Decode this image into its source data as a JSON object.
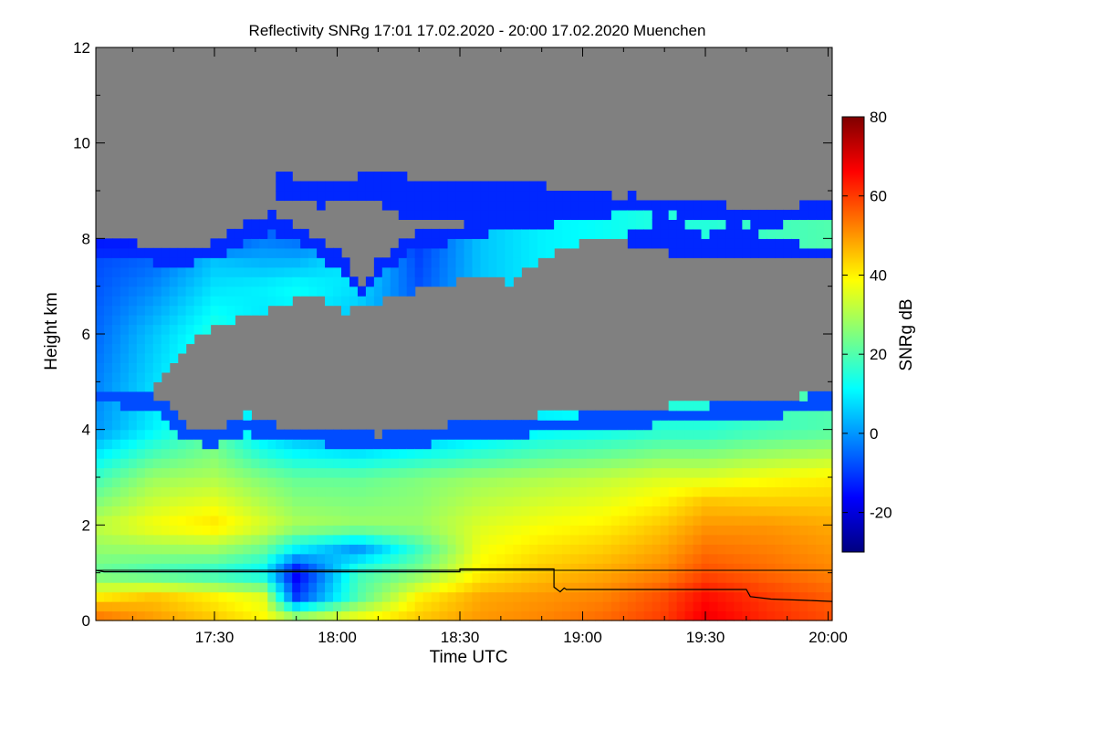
{
  "chart_data": {
    "type": "heatmap",
    "title": "Reflectivity SNRg   17:01 17.02.2020 - 20:00 17.02.2020 Muenchen",
    "xlabel": "Time UTC",
    "ylabel": "Height km",
    "x_tick_labels": [
      "17:30",
      "18:00",
      "18:30",
      "19:00",
      "19:30",
      "20:00"
    ],
    "x_tick_minutes": [
      1050,
      1080,
      1110,
      1140,
      1170,
      1200
    ],
    "xlim_minutes": [
      1021,
      1201
    ],
    "y_tick_labels": [
      "0",
      "2",
      "4",
      "6",
      "8",
      "10",
      "12"
    ],
    "y_ticks": [
      0,
      2,
      4,
      6,
      8,
      10,
      12
    ],
    "ylim": [
      0,
      12
    ],
    "colorbar": {
      "label": "SNRg dB",
      "tick_labels": [
        "-20",
        "0",
        "20",
        "40",
        "60",
        "80"
      ],
      "ticks": [
        -20,
        0,
        20,
        40,
        60,
        80
      ],
      "range": [
        -30,
        80
      ],
      "colormap": [
        "#00007f",
        "#0000ff",
        "#007fff",
        "#00ffff",
        "#7fff7f",
        "#ffff00",
        "#ff7f00",
        "#ff0000",
        "#7f0000"
      ]
    },
    "no_signal_color": "#808080",
    "cloud_top_km": [
      [
        1021,
        8.0
      ],
      [
        1030,
        7.9
      ],
      [
        1040,
        7.8
      ],
      [
        1050,
        7.9
      ],
      [
        1058,
        8.3
      ],
      [
        1064,
        8.5
      ],
      [
        1072,
        8.2
      ],
      [
        1080,
        7.7
      ],
      [
        1086,
        7.1
      ],
      [
        1090,
        7.5
      ],
      [
        1096,
        8.0
      ],
      [
        1104,
        8.2
      ],
      [
        1112,
        8.3
      ],
      [
        1120,
        8.5
      ],
      [
        1128,
        8.6
      ],
      [
        1136,
        8.7
      ],
      [
        1144,
        8.8
      ],
      [
        1152,
        8.9
      ],
      [
        1160,
        8.8
      ],
      [
        1168,
        8.8
      ],
      [
        1176,
        8.7
      ],
      [
        1184,
        8.6
      ],
      [
        1192,
        8.7
      ],
      [
        1201,
        8.8
      ]
    ],
    "clear_gap_km": [
      [
        1021,
        4.9,
        4.9
      ],
      [
        1034,
        4.8,
        4.8
      ],
      [
        1044,
        5.8,
        4.1
      ],
      [
        1050,
        6.2,
        4.0
      ],
      [
        1058,
        6.4,
        4.3
      ],
      [
        1066,
        6.6,
        4.1
      ],
      [
        1074,
        6.9,
        4.1
      ],
      [
        1082,
        6.5,
        4.0
      ],
      [
        1090,
        6.7,
        3.9
      ],
      [
        1098,
        6.9,
        4.0
      ],
      [
        1106,
        7.0,
        4.1
      ],
      [
        1114,
        7.3,
        4.2
      ],
      [
        1122,
        7.1,
        4.2
      ],
      [
        1130,
        7.6,
        4.3
      ],
      [
        1138,
        7.9,
        4.3
      ],
      [
        1146,
        8.0,
        4.4
      ],
      [
        1154,
        8.2,
        4.4
      ],
      [
        1162,
        8.5,
        4.5
      ],
      [
        1170,
        8.1,
        4.5
      ],
      [
        1178,
        8.4,
        4.6
      ],
      [
        1186,
        8.0,
        4.6
      ],
      [
        1194,
        7.9,
        4.7
      ],
      [
        1201,
        7.9,
        4.8
      ]
    ],
    "upper_layer_km": [
      [
        1066,
        8.9,
        9.4
      ],
      [
        1076,
        8.7,
        9.1
      ],
      [
        1086,
        8.9,
        9.3
      ],
      [
        1096,
        8.5,
        9.3
      ],
      [
        1106,
        8.4,
        9.2
      ],
      [
        1116,
        8.5,
        9.1
      ],
      [
        1126,
        8.5,
        9.2
      ],
      [
        1136,
        8.2,
        9.0
      ],
      [
        1146,
        8.0,
        8.9
      ],
      [
        1156,
        7.8,
        8.6
      ],
      [
        1166,
        7.6,
        8.4
      ],
      [
        1176,
        7.7,
        8.3
      ],
      [
        1186,
        7.6,
        8.3
      ],
      [
        1196,
        7.6,
        8.2
      ],
      [
        1201,
        7.6,
        8.2
      ]
    ],
    "snr_profiles": [
      {
        "x": 1021,
        "z": [
          [
            0.0,
            55
          ],
          [
            0.3,
            48
          ],
          [
            1.0,
            22
          ],
          [
            2.0,
            32
          ],
          [
            3.0,
            18
          ],
          [
            4.0,
            0
          ],
          [
            6.0,
            -5
          ],
          [
            7.5,
            -8
          ],
          [
            8.0,
            -15
          ]
        ]
      },
      {
        "x": 1035,
        "z": [
          [
            0.0,
            50
          ],
          [
            0.5,
            45
          ],
          [
            1.0,
            18
          ],
          [
            2.0,
            38
          ],
          [
            3.0,
            28
          ],
          [
            4.0,
            10
          ],
          [
            6.0,
            5
          ],
          [
            7.5,
            -5
          ],
          [
            8.0,
            -15
          ]
        ]
      },
      {
        "x": 1050,
        "z": [
          [
            0.0,
            45
          ],
          [
            0.5,
            40
          ],
          [
            1.0,
            15
          ],
          [
            2.0,
            42
          ],
          [
            3.0,
            30
          ],
          [
            4.0,
            20
          ],
          [
            6.0,
            15
          ],
          [
            7.5,
            5
          ],
          [
            8.0,
            -10
          ]
        ]
      },
      {
        "x": 1062,
        "z": [
          [
            0.0,
            40
          ],
          [
            0.5,
            35
          ],
          [
            1.0,
            10
          ],
          [
            2.0,
            35
          ],
          [
            3.0,
            25
          ],
          [
            4.0,
            5
          ],
          [
            7.0,
            10
          ],
          [
            8.5,
            -10
          ]
        ]
      },
      {
        "x": 1070,
        "z": [
          [
            0.0,
            35
          ],
          [
            0.5,
            -10
          ],
          [
            1.0,
            -18
          ],
          [
            1.5,
            10
          ],
          [
            2.0,
            30
          ],
          [
            3.0,
            22
          ],
          [
            4.0,
            0
          ],
          [
            7.0,
            12
          ],
          [
            8.3,
            -10
          ]
        ]
      },
      {
        "x": 1085,
        "z": [
          [
            0.0,
            40
          ],
          [
            0.5,
            20
          ],
          [
            1.0,
            18
          ],
          [
            1.5,
            0
          ],
          [
            2.0,
            28
          ],
          [
            3.0,
            22
          ],
          [
            4.0,
            -5
          ],
          [
            7.5,
            10
          ],
          [
            8.3,
            -12
          ]
        ]
      },
      {
        "x": 1100,
        "z": [
          [
            0.0,
            45
          ],
          [
            0.5,
            40
          ],
          [
            1.0,
            25
          ],
          [
            1.5,
            18
          ],
          [
            2.0,
            28
          ],
          [
            3.0,
            25
          ],
          [
            4.0,
            0
          ],
          [
            8.0,
            -10
          ]
        ]
      },
      {
        "x": 1115,
        "z": [
          [
            0.0,
            50
          ],
          [
            0.5,
            48
          ],
          [
            1.0,
            40
          ],
          [
            2.0,
            35
          ],
          [
            3.0,
            28
          ],
          [
            4.0,
            5
          ]
        ]
      },
      {
        "x": 1130,
        "z": [
          [
            0.0,
            52
          ],
          [
            0.5,
            50
          ],
          [
            1.0,
            45
          ],
          [
            2.0,
            38
          ],
          [
            3.0,
            30
          ],
          [
            4.0,
            10
          ]
        ]
      },
      {
        "x": 1145,
        "z": [
          [
            0.0,
            55
          ],
          [
            0.5,
            52
          ],
          [
            1.0,
            48
          ],
          [
            2.0,
            40
          ],
          [
            3.0,
            32
          ],
          [
            4.0,
            12
          ]
        ]
      },
      {
        "x": 1160,
        "z": [
          [
            0.0,
            60
          ],
          [
            0.5,
            58
          ],
          [
            1.0,
            52
          ],
          [
            2.0,
            45
          ],
          [
            3.0,
            35
          ],
          [
            4.0,
            15
          ]
        ]
      },
      {
        "x": 1170,
        "z": [
          [
            0.0,
            68
          ],
          [
            0.5,
            65
          ],
          [
            1.0,
            58
          ],
          [
            2.0,
            50
          ],
          [
            2.5,
            45
          ],
          [
            3.0,
            35
          ],
          [
            4.0,
            15
          ]
        ]
      },
      {
        "x": 1185,
        "z": [
          [
            0.0,
            62
          ],
          [
            0.5,
            60
          ],
          [
            1.0,
            55
          ],
          [
            2.0,
            50
          ],
          [
            3.0,
            38
          ],
          [
            4.0,
            18
          ]
        ]
      },
      {
        "x": 1201,
        "z": [
          [
            0.0,
            58
          ],
          [
            0.5,
            56
          ],
          [
            1.0,
            52
          ],
          [
            2.0,
            48
          ],
          [
            3.0,
            40
          ],
          [
            4.0,
            20
          ]
        ]
      }
    ],
    "overlay_line_km": [
      [
        1021,
        1.05
      ],
      [
        1023,
        1.02
      ],
      [
        1030,
        1.02
      ],
      [
        1110,
        1.02
      ],
      [
        1110,
        1.08
      ],
      [
        1133,
        1.08
      ],
      [
        1133,
        0.7
      ],
      [
        1134.5,
        0.6
      ],
      [
        1135.5,
        0.68
      ],
      [
        1136,
        0.65
      ],
      [
        1180,
        0.65
      ],
      [
        1181,
        0.5
      ],
      [
        1186,
        0.45
      ],
      [
        1195,
        0.42
      ],
      [
        1201,
        0.4
      ]
    ],
    "overlay_ref_line_km": [
      [
        1021,
        1.05
      ],
      [
        1201,
        1.05
      ]
    ]
  }
}
